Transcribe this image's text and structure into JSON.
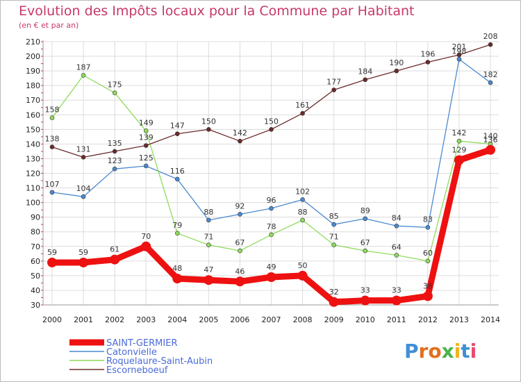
{
  "header": {
    "title": "Evolution des Impôts locaux pour la Commune par Habitant",
    "subtitle": "(en € et par an)"
  },
  "logo": {
    "text": "Proxiti"
  },
  "colors": {
    "title": "#c8376a",
    "grid": "#dcdcdc",
    "axis_ticks": "#c8376a"
  },
  "chart_data": {
    "type": "line",
    "title": "Evolution des Impôts locaux pour la Commune par Habitant",
    "subtitle": "(en € et par an)",
    "xlabel": "",
    "ylabel": "",
    "x": [
      "2000",
      "2001",
      "2002",
      "2003",
      "2004",
      "2005",
      "2006",
      "2007",
      "2008",
      "2009",
      "2010",
      "2011",
      "2012",
      "2013",
      "2014"
    ],
    "ylim": [
      30,
      210
    ],
    "yticks": [
      30,
      40,
      50,
      60,
      70,
      80,
      90,
      100,
      110,
      120,
      130,
      140,
      150,
      160,
      170,
      180,
      190,
      200,
      210
    ],
    "grid": true,
    "legend_position": "bottom-left",
    "series": [
      {
        "name": "SAINT-GERMIER",
        "color": "#ee1111",
        "emphasis": true,
        "values": [
          59,
          59,
          61,
          70,
          48,
          47,
          46,
          49,
          50,
          32,
          33,
          33,
          36,
          129,
          136
        ],
        "labels": [
          "59",
          "59",
          "61",
          "70",
          "48",
          "47",
          "46",
          "49",
          "50",
          "32",
          "33",
          "33",
          "36",
          "129",
          "136"
        ]
      },
      {
        "name": "Catonvielle",
        "color": "#4a8ad0",
        "emphasis": false,
        "values": [
          107,
          104,
          123,
          125,
          116,
          88,
          92,
          96,
          102,
          85,
          89,
          84,
          83,
          198,
          182
        ],
        "labels": [
          "107",
          "104",
          "123",
          "125",
          "116",
          "88",
          "92",
          "96",
          "102",
          "85",
          "89",
          "84",
          "83",
          "198",
          "182"
        ]
      },
      {
        "name": "Roquelaure-Saint-Aubin",
        "color": "#8edc5a",
        "emphasis": false,
        "values": [
          158,
          187,
          175,
          149,
          79,
          71,
          67,
          78,
          88,
          71,
          67,
          64,
          60,
          142,
          140
        ],
        "labels": [
          "158",
          "187",
          "175",
          "149",
          "79",
          "71",
          "67",
          "78",
          "88",
          "71",
          "67",
          "64",
          "60",
          "142",
          "140"
        ]
      },
      {
        "name": "Escorneboeuf",
        "color": "#6b2a2a",
        "emphasis": false,
        "values": [
          138,
          131,
          135,
          139,
          147,
          150,
          142,
          150,
          161,
          177,
          184,
          190,
          196,
          201,
          208
        ],
        "labels": [
          "138",
          "131",
          "135",
          "139",
          "147",
          "150",
          "142",
          "150",
          "161",
          "177",
          "184",
          "190",
          "196",
          "201",
          "208"
        ]
      }
    ]
  }
}
